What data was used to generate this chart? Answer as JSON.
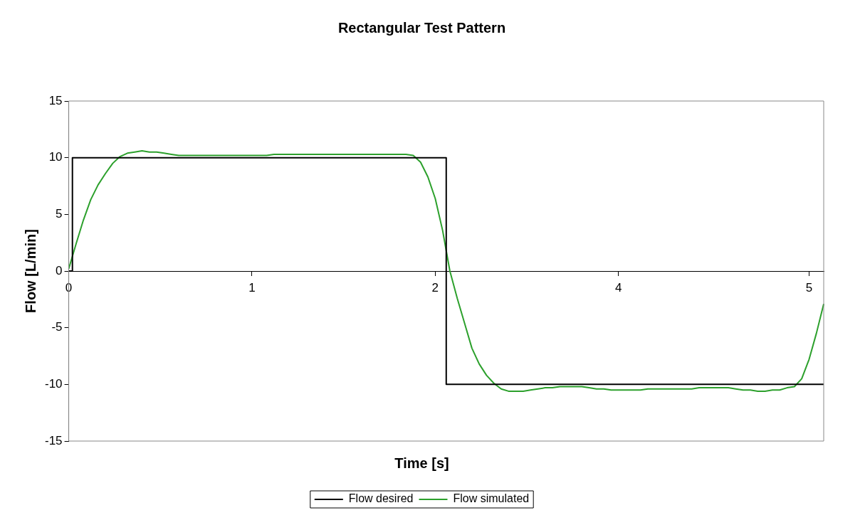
{
  "chart_data": {
    "type": "line",
    "title": "Rectangular Test Pattern",
    "xlabel": "Time [s]",
    "ylabel": "Flow [L/min]",
    "categories": [
      "0",
      null,
      null,
      null,
      null,
      null,
      null,
      null,
      null,
      null,
      null,
      null,
      null,
      null,
      null,
      null,
      null,
      null,
      null,
      null,
      null,
      null,
      null,
      null,
      null,
      "1",
      null,
      null,
      null,
      null,
      null,
      null,
      null,
      null,
      null,
      null,
      null,
      null,
      null,
      null,
      null,
      null,
      null,
      null,
      null,
      null,
      null,
      null,
      null,
      null,
      "2",
      null,
      null,
      null,
      null,
      null,
      null,
      null,
      null,
      null,
      null,
      null,
      null,
      null,
      null,
      null,
      null,
      null,
      null,
      null,
      null,
      null,
      null,
      null,
      null,
      "4",
      null,
      null,
      null,
      null,
      null,
      null,
      null,
      null,
      null,
      null,
      null,
      null,
      null,
      null,
      null,
      null,
      null,
      null,
      null,
      null,
      null,
      null,
      null,
      null,
      null,
      "5",
      null,
      null
    ],
    "series": [
      {
        "name": "Flow desired",
        "type": "step",
        "color": "#000000",
        "values": [
          0,
          10,
          10,
          10,
          10,
          10,
          10,
          10,
          10,
          10,
          10,
          10,
          10,
          10,
          10,
          10,
          10,
          10,
          10,
          10,
          10,
          10,
          10,
          10,
          10,
          10,
          10,
          10,
          10,
          10,
          10,
          10,
          10,
          10,
          10,
          10,
          10,
          10,
          10,
          10,
          10,
          10,
          10,
          10,
          10,
          10,
          10,
          10,
          10,
          10,
          10,
          10,
          -10,
          -10,
          -10,
          -10,
          -10,
          -10,
          -10,
          -10,
          -10,
          -10,
          -10,
          -10,
          -10,
          -10,
          -10,
          -10,
          -10,
          -10,
          -10,
          -10,
          -10,
          -10,
          -10,
          -10,
          -10,
          -10,
          -10,
          -10,
          -10,
          -10,
          -10,
          -10,
          -10,
          -10,
          -10,
          -10,
          -10,
          -10,
          -10,
          -10,
          -10,
          -10,
          -10,
          -10,
          -10,
          -10,
          -10,
          -10,
          -10,
          -10,
          -10,
          -10
        ]
      },
      {
        "name": "Flow simulated",
        "type": "line",
        "color": "#2ca02c",
        "values": [
          0.2,
          2.4,
          4.5,
          6.3,
          7.6,
          8.6,
          9.5,
          10.1,
          10.4,
          10.5,
          10.6,
          10.5,
          10.5,
          10.4,
          10.3,
          10.2,
          10.2,
          10.2,
          10.2,
          10.2,
          10.2,
          10.2,
          10.2,
          10.2,
          10.2,
          10.2,
          10.2,
          10.2,
          10.3,
          10.3,
          10.3,
          10.3,
          10.3,
          10.3,
          10.3,
          10.3,
          10.3,
          10.3,
          10.3,
          10.3,
          10.3,
          10.3,
          10.3,
          10.3,
          10.3,
          10.3,
          10.3,
          10.2,
          9.6,
          8.3,
          6.4,
          3.6,
          0,
          -2.4,
          -4.6,
          -6.8,
          -8.2,
          -9.2,
          -9.9,
          -10.4,
          -10.6,
          -10.6,
          -10.6,
          -10.5,
          -10.4,
          -10.3,
          -10.3,
          -10.2,
          -10.2,
          -10.2,
          -10.2,
          -10.3,
          -10.4,
          -10.4,
          -10.5,
          -10.5,
          -10.5,
          -10.5,
          -10.5,
          -10.4,
          -10.4,
          -10.4,
          -10.4,
          -10.4,
          -10.4,
          -10.4,
          -10.3,
          -10.3,
          -10.3,
          -10.3,
          -10.3,
          -10.4,
          -10.5,
          -10.5,
          -10.6,
          -10.6,
          -10.5,
          -10.5,
          -10.3,
          -10.2,
          -9.5,
          -7.8,
          -5.5,
          -2.9
        ]
      }
    ],
    "ylim": [
      -15,
      15
    ],
    "yticks": [
      -15,
      -10,
      -5,
      0,
      5,
      10,
      15
    ],
    "grid": false,
    "legend": "bottom",
    "marker": "none",
    "line_style": "solid"
  }
}
